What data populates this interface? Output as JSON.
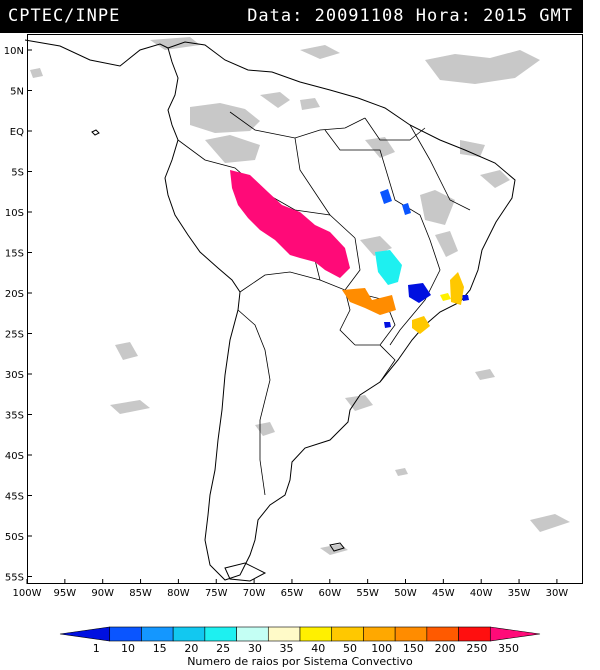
{
  "header": {
    "source": "CPTEC/INPE",
    "datetime": "Data: 20091108 Hora: 2015 GMT"
  },
  "map": {
    "lat_labels": [
      "10N",
      "5N",
      "EQ",
      "5S",
      "10S",
      "15S",
      "20S",
      "25S",
      "30S",
      "35S",
      "40S",
      "45S",
      "50S",
      "55S"
    ],
    "lon_labels": [
      "100W",
      "95W",
      "90W",
      "85W",
      "80W",
      "75W",
      "70W",
      "65W",
      "60W",
      "55W",
      "50W",
      "45W",
      "40W",
      "35W",
      "30W"
    ],
    "lat_values": [
      10,
      5,
      0,
      -5,
      -10,
      -15,
      -20,
      -25,
      -30,
      -35,
      -40,
      -45,
      -50,
      -55
    ],
    "lon_values": [
      -100,
      -95,
      -90,
      -85,
      -80,
      -75,
      -70,
      -65,
      -60,
      -55,
      -50,
      -45,
      -40,
      -35,
      -30
    ]
  },
  "colorbar": {
    "labels": [
      "1",
      "10",
      "15",
      "20",
      "25",
      "30",
      "35",
      "40",
      "50",
      "100",
      "150",
      "200",
      "250",
      "350"
    ],
    "colors": [
      "#0010e0",
      "#0a55ff",
      "#1497ff",
      "#12c8f0",
      "#1ef0f0",
      "#c4fff4",
      "#fffac8",
      "#fff000",
      "#ffc800",
      "#ffa800",
      "#ff8c00",
      "#ff5a00",
      "#ff0f0f",
      "#ff0a78"
    ],
    "title": "Numero de raios por Sistema Convectivo"
  },
  "colors": {
    "cloud": "#c8c8c8",
    "header_bg": "#000000"
  }
}
